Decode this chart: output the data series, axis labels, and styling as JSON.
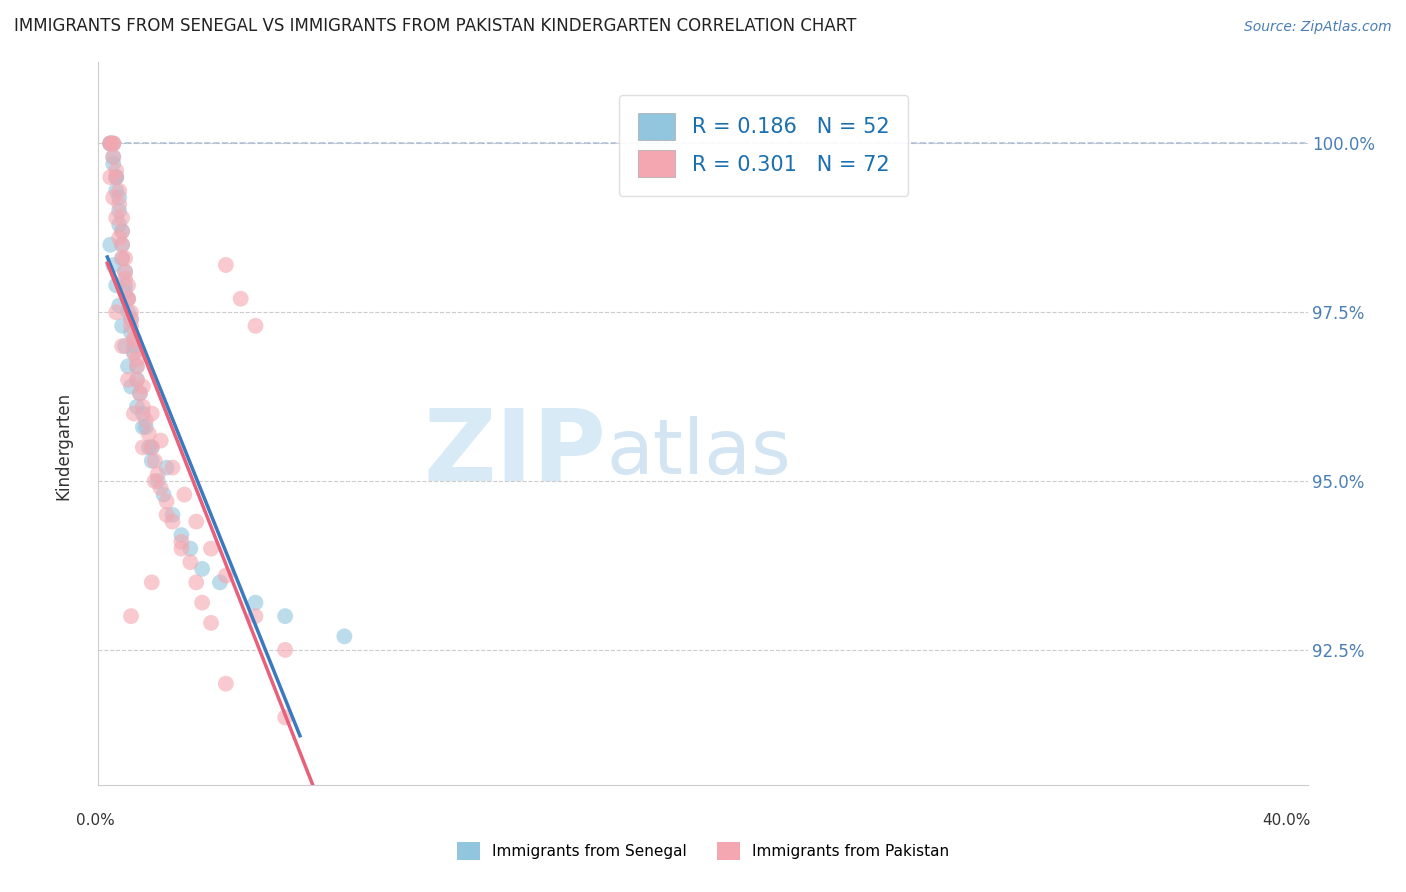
{
  "title": "IMMIGRANTS FROM SENEGAL VS IMMIGRANTS FROM PAKISTAN KINDERGARTEN CORRELATION CHART",
  "source_text": "Source: ZipAtlas.com",
  "ylabel": "Kindergarten",
  "senegal_R": 0.186,
  "senegal_N": 52,
  "pakistan_R": 0.301,
  "pakistan_N": 72,
  "blue_color": "#92c5de",
  "pink_color": "#f4a7b0",
  "blue_line_color": "#3a7abf",
  "pink_line_color": "#e8607a",
  "dash_color": "#a0b8d0",
  "watermark_color": "#d8eaf5",
  "senegal_legend": "Immigrants from Senegal",
  "pakistan_legend": "Immigrants from Pakistan",
  "ytick_vals": [
    92.5,
    95.0,
    97.5,
    100.0
  ],
  "ymin": 90.5,
  "ymax": 101.2,
  "xmin": -0.003,
  "xmax": 0.405,
  "senegal_x": [
    0.001,
    0.001,
    0.002,
    0.002,
    0.002,
    0.003,
    0.003,
    0.003,
    0.004,
    0.004,
    0.004,
    0.005,
    0.005,
    0.005,
    0.006,
    0.006,
    0.006,
    0.007,
    0.007,
    0.008,
    0.008,
    0.009,
    0.009,
    0.01,
    0.01,
    0.011,
    0.012,
    0.013,
    0.014,
    0.015,
    0.017,
    0.019,
    0.022,
    0.025,
    0.028,
    0.032,
    0.038,
    0.05,
    0.06,
    0.08,
    0.001,
    0.002,
    0.003,
    0.004,
    0.005,
    0.006,
    0.007,
    0.008,
    0.01,
    0.012,
    0.015,
    0.02
  ],
  "senegal_y": [
    100.0,
    100.0,
    100.0,
    99.8,
    99.7,
    99.5,
    99.5,
    99.3,
    99.2,
    99.0,
    98.8,
    98.7,
    98.5,
    98.3,
    98.1,
    97.9,
    97.8,
    97.7,
    97.5,
    97.4,
    97.2,
    97.0,
    96.9,
    96.7,
    96.5,
    96.3,
    96.0,
    95.8,
    95.5,
    95.3,
    95.0,
    94.8,
    94.5,
    94.2,
    94.0,
    93.7,
    93.5,
    93.2,
    93.0,
    92.7,
    98.5,
    98.2,
    97.9,
    97.6,
    97.3,
    97.0,
    96.7,
    96.4,
    96.1,
    95.8,
    95.5,
    95.2
  ],
  "pakistan_x": [
    0.001,
    0.001,
    0.002,
    0.002,
    0.002,
    0.003,
    0.003,
    0.004,
    0.004,
    0.005,
    0.005,
    0.005,
    0.006,
    0.006,
    0.007,
    0.007,
    0.008,
    0.008,
    0.009,
    0.009,
    0.01,
    0.01,
    0.011,
    0.012,
    0.013,
    0.014,
    0.015,
    0.016,
    0.017,
    0.018,
    0.02,
    0.022,
    0.025,
    0.028,
    0.03,
    0.032,
    0.035,
    0.04,
    0.045,
    0.05,
    0.001,
    0.002,
    0.003,
    0.004,
    0.005,
    0.006,
    0.007,
    0.008,
    0.009,
    0.01,
    0.012,
    0.015,
    0.018,
    0.022,
    0.026,
    0.03,
    0.035,
    0.04,
    0.05,
    0.06,
    0.003,
    0.005,
    0.007,
    0.009,
    0.012,
    0.016,
    0.02,
    0.025,
    0.015,
    0.008,
    0.04,
    0.06
  ],
  "pakistan_y": [
    100.0,
    100.0,
    100.0,
    100.0,
    99.8,
    99.6,
    99.5,
    99.3,
    99.1,
    98.9,
    98.7,
    98.5,
    98.3,
    98.1,
    97.9,
    97.7,
    97.5,
    97.3,
    97.1,
    96.9,
    96.7,
    96.5,
    96.3,
    96.1,
    95.9,
    95.7,
    95.5,
    95.3,
    95.1,
    94.9,
    94.7,
    94.4,
    94.1,
    93.8,
    93.5,
    93.2,
    92.9,
    98.2,
    97.7,
    97.3,
    99.5,
    99.2,
    98.9,
    98.6,
    98.3,
    98.0,
    97.7,
    97.4,
    97.1,
    96.8,
    96.4,
    96.0,
    95.6,
    95.2,
    94.8,
    94.4,
    94.0,
    93.6,
    93.0,
    92.5,
    97.5,
    97.0,
    96.5,
    96.0,
    95.5,
    95.0,
    94.5,
    94.0,
    93.5,
    93.0,
    92.0,
    91.5
  ]
}
